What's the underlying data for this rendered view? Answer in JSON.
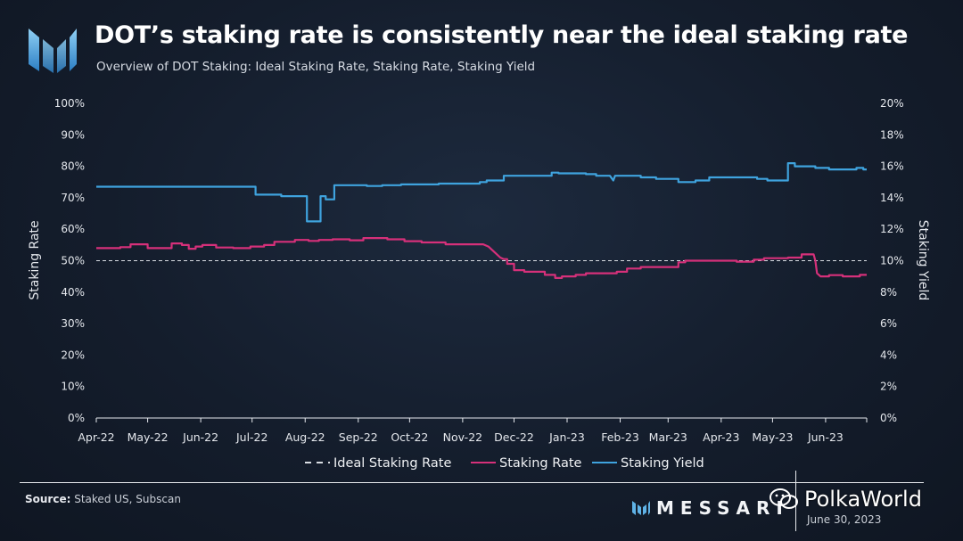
{
  "header": {
    "title": "DOT’s staking rate is consistently near the ideal staking rate",
    "subtitle": "Overview of DOT Staking: Ideal Staking Rate, Staking Rate, Staking Yield"
  },
  "footer": {
    "source_label": "Source:",
    "source_text": "Staked US, Subscan",
    "brand": "MESSARI",
    "date": "June 30, 2023",
    "watermark": "PolkaWorld"
  },
  "colors": {
    "staking_rate": "#d6307a",
    "staking_yield": "#3fa3de",
    "ideal": "#d9dde3",
    "axis_text": "#e4e7ec"
  },
  "chart_data": {
    "type": "line",
    "ylabel_left": "Staking Rate",
    "ylabel_right": "Staking Yield",
    "ylim_left": [
      0,
      100
    ],
    "ylim_right": [
      0,
      20
    ],
    "yticks_left": [
      "0%",
      "10%",
      "20%",
      "30%",
      "40%",
      "50%",
      "60%",
      "70%",
      "80%",
      "90%",
      "100%"
    ],
    "yticks_right": [
      "0%",
      "2%",
      "4%",
      "6%",
      "8%",
      "10%",
      "12%",
      "14%",
      "16%",
      "18%",
      "20%"
    ],
    "xlim_days": [
      0,
      450
    ],
    "x_ticks": [
      {
        "label": "Apr-22",
        "day": 0
      },
      {
        "label": "May-22",
        "day": 30
      },
      {
        "label": "Jun-22",
        "day": 61
      },
      {
        "label": "Jul-22",
        "day": 91
      },
      {
        "label": "Aug-22",
        "day": 122
      },
      {
        "label": "Sep-22",
        "day": 153
      },
      {
        "label": "Oct-22",
        "day": 183
      },
      {
        "label": "Nov-22",
        "day": 214
      },
      {
        "label": "Dec-22",
        "day": 244
      },
      {
        "label": "Jan-23",
        "day": 275
      },
      {
        "label": "Feb-23",
        "day": 306
      },
      {
        "label": "Mar-23",
        "day": 334
      },
      {
        "label": "Apr-23",
        "day": 365
      },
      {
        "label": "May-23",
        "day": 395
      },
      {
        "label": "Jun-23",
        "day": 426
      }
    ],
    "legend": [
      "Ideal Staking Rate",
      "Staking Rate",
      "Staking Yield"
    ],
    "series": [
      {
        "name": "Ideal Staking Rate",
        "axis": "left",
        "style": "dashed",
        "points": [
          [
            0,
            50
          ],
          [
            450,
            50
          ]
        ]
      },
      {
        "name": "Staking Rate",
        "axis": "left",
        "style": "solid",
        "points": [
          [
            0,
            54
          ],
          [
            14,
            54
          ],
          [
            14,
            54.3
          ],
          [
            20,
            54.3
          ],
          [
            20,
            55.2
          ],
          [
            30,
            55.2
          ],
          [
            30,
            54
          ],
          [
            44,
            54
          ],
          [
            44,
            55.5
          ],
          [
            50,
            55.5
          ],
          [
            50,
            55
          ],
          [
            54,
            55
          ],
          [
            54,
            53.8
          ],
          [
            58,
            53.8
          ],
          [
            58,
            54.5
          ],
          [
            62,
            54.5
          ],
          [
            62,
            55
          ],
          [
            70,
            55
          ],
          [
            70,
            54.2
          ],
          [
            80,
            54.2
          ],
          [
            80,
            54
          ],
          [
            90,
            54
          ],
          [
            90,
            54.5
          ],
          [
            98,
            54.5
          ],
          [
            98,
            55
          ],
          [
            104,
            55
          ],
          [
            104,
            56
          ],
          [
            116,
            56
          ],
          [
            116,
            56.6
          ],
          [
            124,
            56.6
          ],
          [
            124,
            56.3
          ],
          [
            130,
            56.3
          ],
          [
            130,
            56.6
          ],
          [
            138,
            56.6
          ],
          [
            138,
            56.8
          ],
          [
            148,
            56.8
          ],
          [
            148,
            56.5
          ],
          [
            156,
            56.5
          ],
          [
            156,
            57.2
          ],
          [
            170,
            57.2
          ],
          [
            170,
            56.8
          ],
          [
            180,
            56.8
          ],
          [
            180,
            56.2
          ],
          [
            190,
            56.2
          ],
          [
            190,
            55.8
          ],
          [
            204,
            55.8
          ],
          [
            204,
            55.2
          ],
          [
            226,
            55.2
          ],
          [
            229,
            54.5
          ],
          [
            233,
            52.5
          ],
          [
            236,
            51
          ],
          [
            238,
            50.5
          ],
          [
            240,
            50.5
          ],
          [
            240,
            49
          ],
          [
            244,
            49
          ],
          [
            244,
            47
          ],
          [
            250,
            47
          ],
          [
            250,
            46.5
          ],
          [
            262,
            46.5
          ],
          [
            262,
            45.5
          ],
          [
            268,
            45.5
          ],
          [
            268,
            44.5
          ],
          [
            272,
            44.5
          ],
          [
            272,
            45
          ],
          [
            280,
            45
          ],
          [
            280,
            45.5
          ],
          [
            286,
            45.5
          ],
          [
            286,
            46
          ],
          [
            304,
            46
          ],
          [
            304,
            46.5
          ],
          [
            310,
            46.5
          ],
          [
            310,
            47.5
          ],
          [
            318,
            47.5
          ],
          [
            318,
            48
          ],
          [
            340,
            48
          ],
          [
            340,
            49.5
          ],
          [
            344,
            49.5
          ],
          [
            344,
            50
          ],
          [
            374,
            50
          ],
          [
            374,
            49.7
          ],
          [
            384,
            49.7
          ],
          [
            384,
            50.3
          ],
          [
            390,
            50.3
          ],
          [
            390,
            50.8
          ],
          [
            404,
            50.8
          ],
          [
            404,
            51
          ],
          [
            412,
            51
          ],
          [
            412,
            52
          ],
          [
            419,
            52
          ],
          [
            420,
            50
          ],
          [
            421,
            46
          ],
          [
            423,
            45
          ],
          [
            428,
            45
          ],
          [
            428,
            45.4
          ],
          [
            436,
            45.4
          ],
          [
            436,
            45
          ],
          [
            446,
            45
          ],
          [
            446,
            45.5
          ],
          [
            450,
            45.5
          ]
        ]
      },
      {
        "name": "Staking Yield",
        "axis": "right",
        "style": "solid",
        "points": [
          [
            0,
            14.7
          ],
          [
            93,
            14.7
          ],
          [
            93,
            14.2
          ],
          [
            108,
            14.2
          ],
          [
            108,
            14.1
          ],
          [
            123,
            14.1
          ],
          [
            123,
            12.5
          ],
          [
            131,
            12.5
          ],
          [
            131,
            14.1
          ],
          [
            134,
            14.1
          ],
          [
            134,
            13.9
          ],
          [
            139,
            13.9
          ],
          [
            139,
            14.8
          ],
          [
            158,
            14.8
          ],
          [
            158,
            14.75
          ],
          [
            167,
            14.75
          ],
          [
            167,
            14.8
          ],
          [
            178,
            14.8
          ],
          [
            178,
            14.85
          ],
          [
            200,
            14.85
          ],
          [
            200,
            14.9
          ],
          [
            224,
            14.9
          ],
          [
            224,
            15
          ],
          [
            228,
            15
          ],
          [
            228,
            15.1
          ],
          [
            238,
            15.1
          ],
          [
            238,
            15.4
          ],
          [
            266,
            15.4
          ],
          [
            266,
            15.6
          ],
          [
            270,
            15.6
          ],
          [
            270,
            15.55
          ],
          [
            286,
            15.55
          ],
          [
            286,
            15.5
          ],
          [
            292,
            15.5
          ],
          [
            292,
            15.4
          ],
          [
            300,
            15.4
          ],
          [
            302,
            15.1
          ],
          [
            303,
            15.4
          ],
          [
            318,
            15.4
          ],
          [
            318,
            15.3
          ],
          [
            327,
            15.3
          ],
          [
            327,
            15.2
          ],
          [
            340,
            15.2
          ],
          [
            340,
            15
          ],
          [
            350,
            15
          ],
          [
            350,
            15.1
          ],
          [
            358,
            15.1
          ],
          [
            358,
            15.3
          ],
          [
            386,
            15.3
          ],
          [
            386,
            15.2
          ],
          [
            392,
            15.2
          ],
          [
            392,
            15.1
          ],
          [
            404,
            15.1
          ],
          [
            404,
            16.2
          ],
          [
            408,
            16.2
          ],
          [
            408,
            16
          ],
          [
            420,
            16
          ],
          [
            420,
            15.9
          ],
          [
            428,
            15.9
          ],
          [
            428,
            15.8
          ],
          [
            444,
            15.8
          ],
          [
            444,
            15.9
          ],
          [
            448,
            15.9
          ],
          [
            448,
            15.8
          ],
          [
            450,
            15.8
          ]
        ]
      }
    ]
  }
}
